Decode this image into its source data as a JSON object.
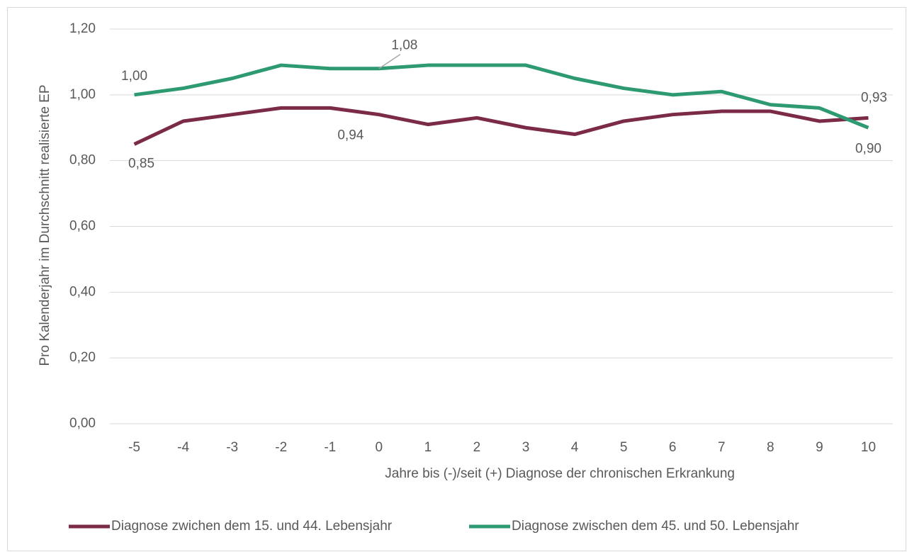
{
  "chart_data": {
    "type": "line",
    "x_label": "Jahre bis (-)/seit  (+) Diagnose der chronischen Erkrankung",
    "y_label": "Pro Kalenderjahr im Durchschnitt realisierte EP",
    "categories": [
      "-5",
      "-4",
      "-3",
      "-2",
      "-1",
      "0",
      "1",
      "2",
      "3",
      "4",
      "5",
      "6",
      "7",
      "8",
      "9",
      "10"
    ],
    "ylim": [
      0,
      1.2
    ],
    "yticks": [
      {
        "value": 0,
        "label": "0,00"
      },
      {
        "value": 0.2,
        "label": "0,20"
      },
      {
        "value": 0.4,
        "label": "0,40"
      },
      {
        "value": 0.6,
        "label": "0,60"
      },
      {
        "value": 0.8,
        "label": "0,80"
      },
      {
        "value": 1.0,
        "label": "1,00"
      },
      {
        "value": 1.2,
        "label": "1,20"
      }
    ],
    "grid": true,
    "legend": "bottom",
    "series": [
      {
        "name": "Diagnose zwichen dem 15. und 44. Lebensjahr",
        "color": "#7b2a47",
        "values": [
          0.85,
          0.92,
          0.94,
          0.96,
          0.96,
          0.94,
          0.91,
          0.93,
          0.9,
          0.88,
          0.92,
          0.94,
          0.95,
          0.95,
          0.92,
          0.93
        ],
        "value_labels": [
          "0,85",
          null,
          null,
          null,
          null,
          "0,94",
          null,
          null,
          null,
          null,
          null,
          null,
          null,
          null,
          null,
          "0,93"
        ]
      },
      {
        "name": "Diagnose zwischen dem 45. und 50. Lebensjahr",
        "color": "#2e9a72",
        "values": [
          1.0,
          1.02,
          1.05,
          1.09,
          1.08,
          1.08,
          1.09,
          1.09,
          1.09,
          1.05,
          1.02,
          1.0,
          1.01,
          0.97,
          0.96,
          0.9
        ],
        "value_labels": [
          "1,00",
          null,
          null,
          null,
          null,
          "1,08",
          null,
          null,
          null,
          null,
          null,
          null,
          null,
          null,
          null,
          "0,90"
        ]
      }
    ]
  }
}
